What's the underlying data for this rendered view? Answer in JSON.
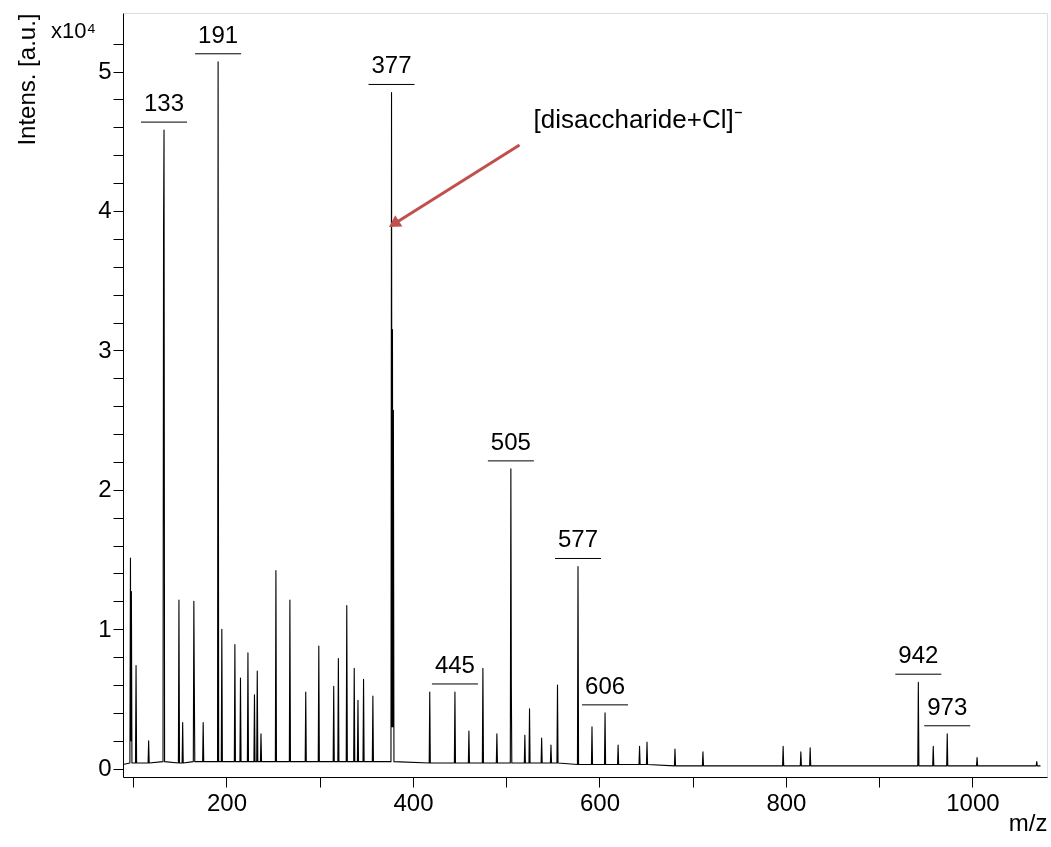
{
  "chart_data": {
    "type": "line",
    "xlabel": "m/z",
    "ylabel": "Intens. [a.u.]",
    "xlim": [
      89,
      1080
    ],
    "ylim": [
      -0.06,
      5.42
    ],
    "xticks": [
      {
        "value": 100,
        "label": null
      },
      200,
      {
        "value": 300,
        "label": null
      },
      400,
      {
        "value": 500,
        "label": null
      },
      600,
      {
        "value": 700,
        "label": null
      },
      800,
      {
        "value": 900,
        "label": null
      },
      1000
    ],
    "yticks": [
      0,
      {
        "value": 0.2,
        "label": null
      },
      {
        "value": 0.4,
        "label": null
      },
      {
        "value": 0.6,
        "label": null
      },
      {
        "value": 0.8,
        "label": null
      },
      1,
      {
        "value": 1.2,
        "label": null
      },
      {
        "value": 1.4,
        "label": null
      },
      {
        "value": 1.6,
        "label": null
      },
      {
        "value": 1.8,
        "label": null
      },
      2,
      {
        "value": 2.2,
        "label": null
      },
      {
        "value": 2.4,
        "label": null
      },
      {
        "value": 2.6,
        "label": null
      },
      {
        "value": 2.8,
        "label": null
      },
      3,
      {
        "value": 3.2,
        "label": null
      },
      {
        "value": 3.4,
        "label": null
      },
      {
        "value": 3.6,
        "label": null
      },
      {
        "value": 3.8,
        "label": null
      },
      4,
      {
        "value": 4.2,
        "label": null
      },
      {
        "value": 4.4,
        "label": null
      },
      {
        "value": 4.6,
        "label": null
      },
      {
        "value": 4.8,
        "label": null
      },
      5,
      {
        "value": 5.2,
        "label": null
      }
    ],
    "grid": false,
    "marker": "none",
    "line_style": "solid",
    "annotations": [
      "x10⁴",
      {
        "text": "[disaccharide+Cl]⁻",
        "x": 377,
        "y": 3.9
      },
      {
        "text": "133",
        "x": 133,
        "y": 4.58
      },
      {
        "text": "191",
        "x": 191,
        "y": 5.07
      },
      {
        "text": "377",
        "x": 377,
        "y": 4.85
      },
      {
        "text": "445",
        "x": 445,
        "y": 0.55
      },
      {
        "text": "505",
        "x": 505,
        "y": 2.15
      },
      {
        "text": "577",
        "x": 577,
        "y": 1.45
      },
      {
        "text": "606",
        "x": 606,
        "y": 0.4
      },
      {
        "text": "942",
        "x": 942,
        "y": 0.62
      },
      {
        "text": "973",
        "x": 973,
        "y": 0.25
      }
    ],
    "series": [
      {
        "color": "#000000",
        "x": [
          89,
          96.4,
          97,
          97.5,
          98,
          98.6,
          102.4,
          103,
          103.6,
          115.9,
          116.5,
          117.1,
          131.9,
          132.5,
          133,
          133.6,
          148.4,
          149,
          149.6,
          152.4,
          153,
          153.6,
          164.4,
          165,
          165.5,
          166,
          174.4,
          175,
          175.6,
          190.4,
          190.8,
          191,
          191.6,
          194.4,
          195,
          195.6,
          208.4,
          209,
          209.6,
          214.4,
          215,
          215.6,
          222.4,
          223,
          223.6,
          229.4,
          230,
          230.6,
          232.4,
          233,
          233.6,
          236.4,
          237,
          237.6,
          252.4,
          253,
          253.6,
          267.4,
          268,
          268.6,
          284.4,
          285,
          285.6,
          298.4,
          299,
          299.6,
          314.4,
          315,
          315.6,
          319.4,
          320,
          320.6,
          328.4,
          329,
          329.6,
          336.4,
          337,
          337.6,
          340.4,
          341,
          341.6,
          346.4,
          347,
          347.6,
          356.4,
          357,
          357.6,
          376.4,
          377,
          377.5,
          378,
          378.5,
          379,
          379.6,
          417.4,
          418,
          418.6,
          444.4,
          445,
          445.6,
          459.4,
          460,
          460.6,
          474.4,
          475,
          475.6,
          489.4,
          490,
          490.6,
          504.4,
          505,
          505.5,
          506,
          519.4,
          520,
          520.6,
          524.4,
          525,
          525.6,
          537.4,
          538,
          538.6,
          547.4,
          548,
          548.6,
          554.4,
          555,
          555.6,
          576.4,
          577,
          577.6,
          591.4,
          592,
          592.6,
          605.4,
          606,
          606.6,
          619.4,
          620,
          620.6,
          642.4,
          643,
          643.6,
          650.4,
          651,
          651.6,
          680.4,
          681,
          681.6,
          710.4,
          711,
          711.6,
          796.4,
          797,
          797.6,
          815.4,
          816,
          816.6,
          825.4,
          826,
          826.6,
          941.4,
          942,
          942.6,
          957.4,
          958,
          958.6,
          972.4,
          973,
          973.6,
          1004.4,
          1005,
          1005.6,
          1068.4,
          1069,
          1069.6,
          1073
        ],
        "values": [
          0.03,
          0.04,
          1.51,
          0.2,
          1.27,
          0.04,
          0.04,
          0.74,
          0.04,
          0.04,
          0.2,
          0.04,
          0.05,
          3.9,
          4.58,
          0.05,
          0.04,
          1.21,
          0.04,
          0.04,
          0.33,
          0.04,
          0.05,
          1.2,
          0.6,
          0.05,
          0.05,
          0.33,
          0.05,
          0.05,
          3.35,
          5.07,
          0.05,
          0.05,
          1.0,
          0.05,
          0.05,
          0.89,
          0.05,
          0.05,
          0.65,
          0.05,
          0.05,
          0.83,
          0.05,
          0.05,
          0.53,
          0.05,
          0.05,
          0.7,
          0.05,
          0.05,
          0.25,
          0.05,
          0.05,
          1.42,
          0.05,
          0.05,
          1.21,
          0.05,
          0.05,
          0.55,
          0.05,
          0.05,
          0.88,
          0.05,
          0.05,
          0.59,
          0.05,
          0.05,
          0.79,
          0.05,
          0.05,
          1.17,
          0.05,
          0.05,
          0.72,
          0.05,
          0.05,
          0.49,
          0.05,
          0.05,
          0.64,
          0.05,
          0.05,
          0.52,
          0.05,
          0.05,
          4.85,
          0.3,
          3.15,
          0.3,
          2.57,
          0.05,
          0.04,
          0.55,
          0.04,
          0.04,
          0.55,
          0.04,
          0.04,
          0.27,
          0.04,
          0.04,
          0.72,
          0.04,
          0.04,
          0.25,
          0.04,
          0.04,
          2.15,
          0.59,
          0.04,
          0.04,
          0.24,
          0.04,
          0.04,
          0.43,
          0.04,
          0.04,
          0.22,
          0.04,
          0.04,
          0.17,
          0.04,
          0.04,
          0.6,
          0.04,
          0.03,
          1.45,
          0.03,
          0.03,
          0.3,
          0.03,
          0.03,
          0.4,
          0.03,
          0.03,
          0.17,
          0.03,
          0.03,
          0.16,
          0.03,
          0.03,
          0.19,
          0.03,
          0.02,
          0.14,
          0.02,
          0.02,
          0.12,
          0.02,
          0.02,
          0.16,
          0.02,
          0.02,
          0.12,
          0.02,
          0.02,
          0.15,
          0.02,
          0.02,
          0.62,
          0.02,
          0.02,
          0.16,
          0.02,
          0.02,
          0.25,
          0.02,
          0.02,
          0.08,
          0.02,
          0.02,
          0.05,
          0.02,
          0.02
        ]
      }
    ]
  }
}
